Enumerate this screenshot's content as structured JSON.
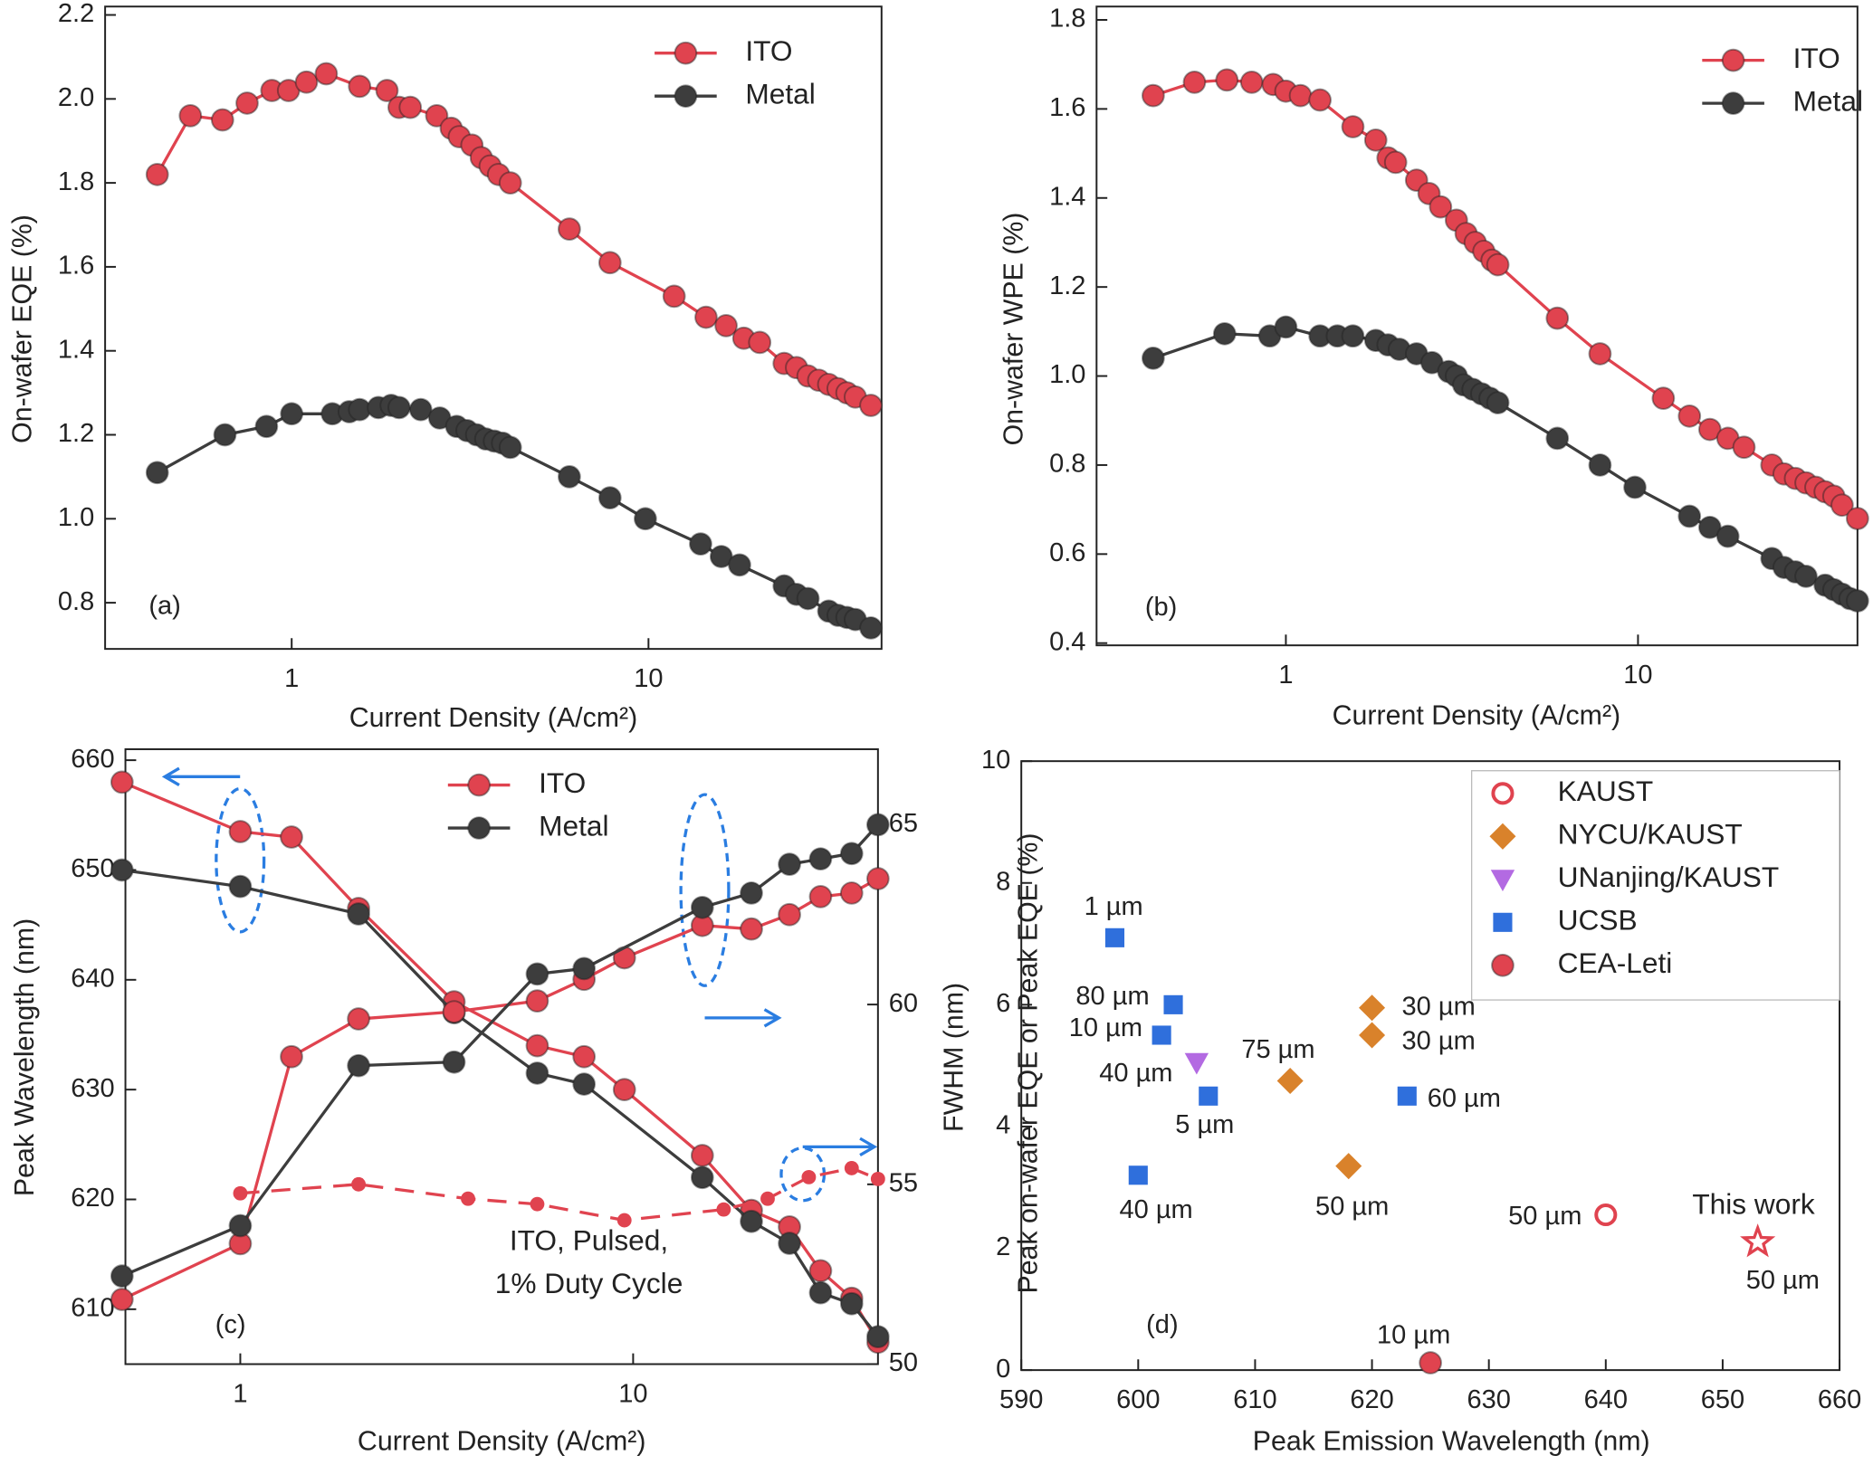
{
  "chart_data": [
    {
      "type": "line",
      "panel_label": "(a)",
      "x_label": "Current Density (A/cm²)",
      "y_label": "On-wafer EQE (%)",
      "xscale": "log",
      "xlim": [
        0.3,
        45
      ],
      "xticks": [
        1,
        10
      ],
      "ylim": [
        0.69,
        2.22
      ],
      "yticks": [
        0.8,
        {
          "value": 1,
          "label": "1.0"
        },
        1.2,
        1.4,
        1.6,
        1.8,
        {
          "value": 2,
          "label": "2.0"
        },
        2.2
      ],
      "series": [
        {
          "name": "ITO",
          "color": "#e0434f",
          "marker": "circle",
          "x": [
            0.42,
            0.52,
            0.64,
            0.75,
            0.88,
            0.98,
            1.1,
            1.25,
            1.55,
            1.85,
            2.0,
            2.15,
            2.55,
            2.8,
            2.95,
            3.2,
            3.4,
            3.6,
            3.8,
            4.1,
            6.0,
            7.8,
            11.8,
            14.5,
            16.5,
            18.5,
            20.5,
            24,
            26,
            28,
            30,
            32,
            34,
            36,
            38,
            42
          ],
          "values": [
            1.82,
            1.96,
            1.95,
            1.99,
            2.02,
            2.02,
            2.04,
            2.06,
            2.03,
            2.02,
            1.98,
            1.98,
            1.96,
            1.93,
            1.91,
            1.89,
            1.86,
            1.84,
            1.82,
            1.8,
            1.69,
            1.61,
            1.53,
            1.48,
            1.46,
            1.43,
            1.42,
            1.37,
            1.36,
            1.34,
            1.33,
            1.32,
            1.31,
            1.3,
            1.29,
            1.27
          ]
        },
        {
          "name": "Metal",
          "color": "#3d3d3d",
          "marker": "circle",
          "x": [
            0.42,
            0.65,
            0.85,
            1.0,
            1.3,
            1.45,
            1.55,
            1.75,
            1.9,
            2.0,
            2.3,
            2.6,
            2.9,
            3.1,
            3.3,
            3.5,
            3.7,
            3.9,
            4.1,
            6,
            7.8,
            9.8,
            14,
            16,
            18,
            24,
            26,
            28,
            32,
            34,
            36,
            38,
            42
          ],
          "values": [
            1.11,
            1.2,
            1.22,
            1.25,
            1.25,
            1.255,
            1.26,
            1.265,
            1.27,
            1.265,
            1.26,
            1.24,
            1.22,
            1.21,
            1.2,
            1.19,
            1.185,
            1.18,
            1.17,
            1.1,
            1.05,
            1.0,
            0.94,
            0.91,
            0.89,
            0.84,
            0.82,
            0.81,
            0.78,
            0.77,
            0.765,
            0.76,
            0.74
          ]
        }
      ]
    },
    {
      "type": "line",
      "panel_label": "(b)",
      "x_label": "Current Density (A/cm²)",
      "y_label": "On-wafer WPE (%)",
      "xscale": "log",
      "xlim": [
        0.29,
        42
      ],
      "xticks": [
        1,
        10
      ],
      "ylim": [
        0.395,
        1.83
      ],
      "yticks": [
        0.4,
        0.6,
        0.8,
        {
          "value": 1,
          "label": "1.0"
        },
        1.2,
        1.4,
        1.6,
        1.8
      ],
      "series": [
        {
          "name": "ITO",
          "color": "#e0434f",
          "marker": "circle",
          "x": [
            0.42,
            0.55,
            0.68,
            0.8,
            0.92,
            1.0,
            1.1,
            1.25,
            1.55,
            1.8,
            1.95,
            2.05,
            2.35,
            2.55,
            2.75,
            3.05,
            3.25,
            3.45,
            3.65,
            3.85,
            4.0,
            5.9,
            7.8,
            11.8,
            14,
            16,
            18,
            20,
            24,
            26,
            28,
            30,
            32,
            34,
            36,
            38,
            42
          ],
          "values": [
            1.63,
            1.66,
            1.665,
            1.66,
            1.655,
            1.64,
            1.63,
            1.62,
            1.56,
            1.53,
            1.49,
            1.48,
            1.44,
            1.41,
            1.38,
            1.35,
            1.32,
            1.3,
            1.28,
            1.26,
            1.25,
            1.13,
            1.05,
            0.95,
            0.91,
            0.88,
            0.86,
            0.84,
            0.8,
            0.78,
            0.77,
            0.76,
            0.75,
            0.74,
            0.73,
            0.71,
            0.68
          ]
        },
        {
          "name": "Metal",
          "color": "#3d3d3d",
          "marker": "circle",
          "x": [
            0.42,
            0.67,
            0.9,
            1.0,
            1.25,
            1.4,
            1.55,
            1.8,
            1.95,
            2.1,
            2.35,
            2.6,
            2.9,
            3.05,
            3.2,
            3.4,
            3.6,
            3.8,
            4.0,
            5.9,
            7.8,
            9.8,
            14,
            16,
            18,
            24,
            26,
            28,
            30,
            34,
            36,
            38,
            40,
            42
          ],
          "values": [
            1.04,
            1.095,
            1.09,
            1.11,
            1.09,
            1.09,
            1.09,
            1.08,
            1.07,
            1.06,
            1.05,
            1.03,
            1.01,
            1.0,
            0.98,
            0.97,
            0.96,
            0.95,
            0.94,
            0.86,
            0.8,
            0.75,
            0.685,
            0.66,
            0.64,
            0.59,
            0.57,
            0.56,
            0.55,
            0.53,
            0.52,
            0.51,
            0.5,
            0.495
          ]
        }
      ]
    },
    {
      "type": "line",
      "panel_label": "(c)",
      "x_label": "Current Density (A/cm²)",
      "y_label": "Peak Wavelength (nm)",
      "y2_label": "FWHM (nm)",
      "xscale": "log",
      "xlim": [
        0.51,
        42
      ],
      "xticks": [
        1,
        10
      ],
      "ylim": [
        605,
        661
      ],
      "yticks": [
        610,
        620,
        630,
        640,
        650,
        660
      ],
      "y2lim": [
        50,
        67.1
      ],
      "y2ticks": [
        50,
        55,
        60,
        65
      ],
      "annotations": [
        "ITO, Pulsed,",
        "1% Duty Cycle"
      ],
      "series": [
        {
          "name": "ITO",
          "color": "#e0434f",
          "marker": "circle",
          "x": [
            0.5,
            1.0,
            1.35,
            2.0,
            3.5,
            5.7,
            7.5,
            9.5,
            15,
            20,
            25,
            30,
            36,
            42
          ],
          "values": [
            658,
            653.5,
            653,
            646.5,
            638,
            634,
            633,
            630,
            624,
            619,
            617.5,
            613.5,
            611,
            607
          ]
        },
        {
          "name": "Metal",
          "color": "#3d3d3d",
          "marker": "circle",
          "x": [
            0.5,
            1.0,
            2.0,
            3.5,
            5.7,
            7.5,
            15,
            20,
            25,
            30,
            36,
            42
          ],
          "values": [
            650,
            648.5,
            646,
            637,
            631.5,
            630.5,
            622,
            618,
            616,
            611.5,
            610.5,
            607.5
          ]
        },
        {
          "color": "#e0434f",
          "marker": "circle",
          "axis": "y2",
          "x": [
            0.5,
            1.0,
            1.35,
            2.0,
            3.5,
            5.7,
            7.5,
            9.5,
            15,
            20,
            25,
            30,
            36,
            42
          ],
          "values": [
            51.8,
            53.35,
            58.55,
            59.6,
            59.8,
            60.1,
            60.7,
            61.3,
            62.2,
            62.1,
            62.5,
            63.0,
            63.1,
            63.5
          ]
        },
        {
          "color": "#3d3d3d",
          "marker": "circle",
          "axis": "y2",
          "x": [
            0.5,
            1.0,
            2.0,
            3.5,
            5.7,
            7.5,
            15,
            20,
            25,
            30,
            36,
            42
          ],
          "values": [
            52.45,
            53.85,
            58.3,
            58.4,
            60.85,
            61.0,
            62.7,
            63.1,
            63.9,
            64.05,
            64.2,
            65.0
          ]
        },
        {
          "color": "#e0434f",
          "marker": "dot",
          "dash": true,
          "axis": "y2",
          "x": [
            1.0,
            2.0,
            3.8,
            5.7,
            9.5,
            17,
            22,
            28,
            36,
            42
          ],
          "values": [
            54.75,
            55.0,
            54.6,
            54.45,
            54.0,
            54.3,
            54.6,
            55.2,
            55.45,
            55.15
          ]
        }
      ]
    },
    {
      "type": "scatter",
      "panel_label": "(d)",
      "x_label": "Peak Emission Wavelength (nm)",
      "y_label": "Peak on-wafer EQE or Peak EQE (%)",
      "xlim": [
        590,
        660
      ],
      "xticks": [
        590,
        600,
        610,
        620,
        630,
        640,
        650,
        660
      ],
      "ylim": [
        0,
        10
      ],
      "yticks": [
        0,
        2,
        4,
        6,
        8,
        10
      ],
      "legend": "top-right",
      "annotations": [
        "This work"
      ],
      "series": [
        {
          "name": "KAUST",
          "color": "#e0434f",
          "marker": "open-circle",
          "x": [
            640
          ],
          "values": [
            2.55
          ],
          "labels": [
            "50 µm"
          ]
        },
        {
          "name": "NYCU/KAUST",
          "color": "#d9822b",
          "marker": "diamond",
          "x": [
            620,
            620,
            613,
            618
          ],
          "values": [
            5.95,
            5.5,
            4.75,
            3.35
          ],
          "labels": [
            "30 µm",
            "30 µm",
            "75 µm",
            "50 µm"
          ]
        },
        {
          "name": "UNanjing/KAUST",
          "color": "#b36ae2",
          "marker": "triangle-down",
          "x": [
            605
          ],
          "values": [
            5.05
          ],
          "labels": [
            "40 µm"
          ]
        },
        {
          "name": "UCSB",
          "color": "#2f6fdc",
          "marker": "square",
          "x": [
            598,
            603,
            602,
            606,
            600,
            623
          ],
          "values": [
            7.1,
            6.0,
            5.5,
            4.5,
            3.2,
            4.5
          ],
          "labels": [
            "1 µm",
            "80 µm",
            "10 µm",
            "5 µm",
            "40 µm",
            "60 µm"
          ]
        },
        {
          "name": "CEA-Leti",
          "color": "#e0434f",
          "marker": "circle",
          "x": [
            625
          ],
          "values": [
            0.12
          ],
          "labels": [
            "10 µm"
          ]
        },
        {
          "color": "#e0434f",
          "marker": "star",
          "x": [
            653
          ],
          "values": [
            2.1
          ],
          "labels": [
            "50 µm"
          ]
        }
      ]
    }
  ]
}
